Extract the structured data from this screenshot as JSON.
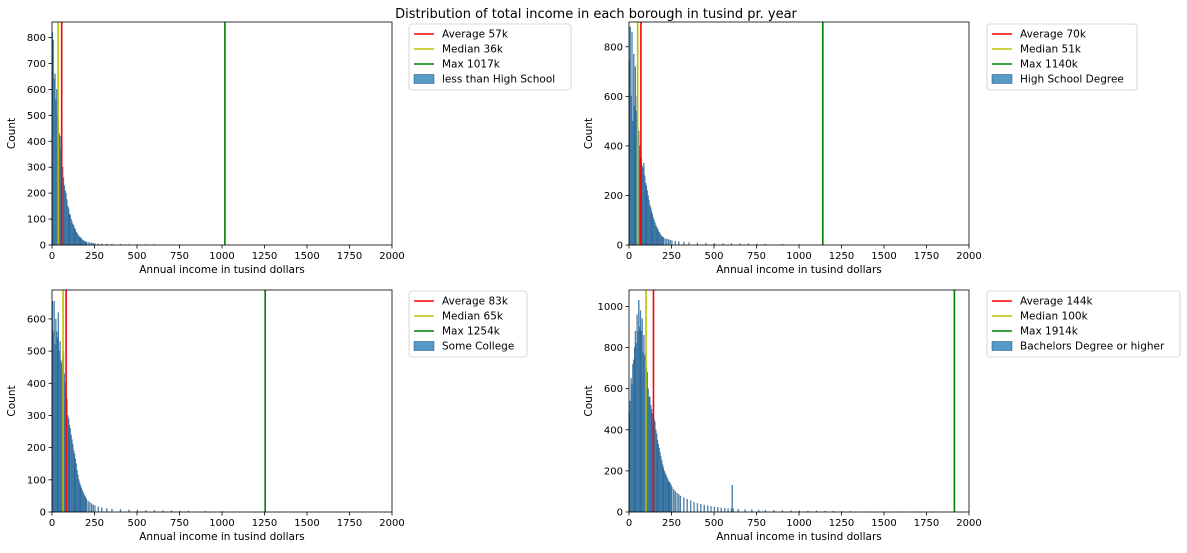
{
  "title": "Distribution of total income in each borough in tusind pr. year",
  "chart_data": [
    {
      "type": "bar",
      "xlabel": "Annual income in tusind dollars",
      "ylabel": "Count",
      "xlim": [
        0,
        2000
      ],
      "ylim": [
        0,
        860
      ],
      "xticks": [
        0,
        250,
        500,
        750,
        1000,
        1250,
        1500,
        1750,
        2000
      ],
      "yticks": [
        0,
        100,
        200,
        300,
        400,
        500,
        600,
        700,
        800
      ],
      "bin_width": 5,
      "legend": {
        "placement": "outside-top-right",
        "entries": [
          "Average 57k",
          "Median 36k",
          "Max 1017k",
          "less than High School"
        ]
      },
      "lines": {
        "average": 57,
        "median": 36,
        "max": 1017
      },
      "colors": {
        "average": "#ff0000",
        "median": "#bfbf00",
        "max": "#008000",
        "bars": "#1f77b4"
      },
      "bins": [
        [
          0,
          820
        ],
        [
          5,
          790
        ],
        [
          10,
          640
        ],
        [
          15,
          660
        ],
        [
          20,
          560
        ],
        [
          25,
          600
        ],
        [
          30,
          500
        ],
        [
          35,
          480
        ],
        [
          40,
          430
        ],
        [
          45,
          420
        ],
        [
          50,
          370
        ],
        [
          55,
          350
        ],
        [
          60,
          300
        ],
        [
          65,
          260
        ],
        [
          70,
          230
        ],
        [
          75,
          210
        ],
        [
          80,
          200
        ],
        [
          85,
          175
        ],
        [
          90,
          150
        ],
        [
          95,
          140
        ],
        [
          100,
          120
        ],
        [
          105,
          115
        ],
        [
          110,
          100
        ],
        [
          115,
          90
        ],
        [
          120,
          80
        ],
        [
          125,
          75
        ],
        [
          130,
          65
        ],
        [
          135,
          60
        ],
        [
          140,
          50
        ],
        [
          145,
          45
        ],
        [
          150,
          40
        ],
        [
          155,
          35
        ],
        [
          160,
          30
        ],
        [
          165,
          28
        ],
        [
          170,
          25
        ],
        [
          175,
          20
        ],
        [
          180,
          18
        ],
        [
          185,
          16
        ],
        [
          190,
          14
        ],
        [
          195,
          12
        ],
        [
          200,
          11
        ],
        [
          210,
          10
        ],
        [
          220,
          9
        ],
        [
          230,
          8
        ],
        [
          240,
          7
        ],
        [
          250,
          6
        ],
        [
          270,
          5
        ],
        [
          290,
          4
        ],
        [
          320,
          4
        ],
        [
          350,
          3
        ],
        [
          400,
          3
        ],
        [
          450,
          2
        ],
        [
          500,
          2
        ],
        [
          550,
          2
        ],
        [
          600,
          2
        ],
        [
          650,
          1
        ],
        [
          700,
          1
        ],
        [
          750,
          1
        ],
        [
          800,
          1
        ],
        [
          900,
          1
        ],
        [
          1017,
          1
        ]
      ]
    },
    {
      "type": "bar",
      "xlabel": "Annual income in tusind dollars",
      "ylabel": "Count",
      "xlim": [
        0,
        2000
      ],
      "ylim": [
        0,
        900
      ],
      "xticks": [
        0,
        250,
        500,
        750,
        1000,
        1250,
        1500,
        1750,
        2000
      ],
      "yticks": [
        0,
        200,
        400,
        600,
        800
      ],
      "bin_width": 5,
      "legend": {
        "placement": "outside-top-right",
        "entries": [
          "Average 70k",
          "Median 51k",
          "Max 1140k",
          "High School Degree"
        ]
      },
      "lines": {
        "average": 70,
        "median": 51,
        "max": 1140
      },
      "colors": {
        "average": "#ff0000",
        "median": "#bfbf00",
        "max": "#008000",
        "bars": "#1f77b4"
      },
      "bins": [
        [
          0,
          745
        ],
        [
          5,
          880
        ],
        [
          10,
          600
        ],
        [
          15,
          860
        ],
        [
          20,
          500
        ],
        [
          25,
          770
        ],
        [
          30,
          560
        ],
        [
          35,
          720
        ],
        [
          40,
          540
        ],
        [
          45,
          600
        ],
        [
          50,
          480
        ],
        [
          55,
          460
        ],
        [
          60,
          400
        ],
        [
          65,
          360
        ],
        [
          70,
          350
        ],
        [
          75,
          320
        ],
        [
          80,
          310
        ],
        [
          85,
          330
        ],
        [
          90,
          280
        ],
        [
          95,
          250
        ],
        [
          100,
          240
        ],
        [
          105,
          220
        ],
        [
          110,
          200
        ],
        [
          115,
          180
        ],
        [
          120,
          160
        ],
        [
          125,
          150
        ],
        [
          130,
          135
        ],
        [
          135,
          125
        ],
        [
          140,
          110
        ],
        [
          145,
          100
        ],
        [
          150,
          90
        ],
        [
          155,
          80
        ],
        [
          160,
          72
        ],
        [
          165,
          65
        ],
        [
          170,
          58
        ],
        [
          175,
          52
        ],
        [
          180,
          46
        ],
        [
          185,
          40
        ],
        [
          190,
          36
        ],
        [
          195,
          32
        ],
        [
          200,
          30
        ],
        [
          210,
          26
        ],
        [
          220,
          24
        ],
        [
          230,
          22
        ],
        [
          240,
          20
        ],
        [
          250,
          18
        ],
        [
          270,
          16
        ],
        [
          290,
          14
        ],
        [
          320,
          12
        ],
        [
          350,
          10
        ],
        [
          400,
          9
        ],
        [
          450,
          8
        ],
        [
          500,
          7
        ],
        [
          550,
          6
        ],
        [
          600,
          6
        ],
        [
          650,
          5
        ],
        [
          700,
          5
        ],
        [
          750,
          4
        ],
        [
          800,
          4
        ],
        [
          900,
          3
        ],
        [
          1000,
          2
        ],
        [
          1140,
          1
        ]
      ]
    },
    {
      "type": "bar",
      "xlabel": "Annual income in tusind dollars",
      "ylabel": "Count",
      "xlim": [
        0,
        2000
      ],
      "ylim": [
        0,
        690
      ],
      "xticks": [
        0,
        250,
        500,
        750,
        1000,
        1250,
        1500,
        1750,
        2000
      ],
      "yticks": [
        0,
        100,
        200,
        300,
        400,
        500,
        600
      ],
      "bin_width": 5,
      "legend": {
        "placement": "outside-top-right",
        "entries": [
          "Average 83k",
          "Median 65k",
          "Max 1254k",
          "Some College"
        ]
      },
      "lines": {
        "average": 83,
        "median": 65,
        "max": 1254
      },
      "colors": {
        "average": "#ff0000",
        "median": "#bfbf00",
        "max": "#008000",
        "bars": "#1f77b4"
      },
      "bins": [
        [
          0,
          655
        ],
        [
          5,
          560
        ],
        [
          10,
          655
        ],
        [
          15,
          520
        ],
        [
          20,
          600
        ],
        [
          25,
          560
        ],
        [
          30,
          540
        ],
        [
          35,
          620
        ],
        [
          40,
          500
        ],
        [
          45,
          530
        ],
        [
          50,
          470
        ],
        [
          55,
          460
        ],
        [
          60,
          480
        ],
        [
          65,
          500
        ],
        [
          70,
          430
        ],
        [
          75,
          400
        ],
        [
          80,
          370
        ],
        [
          85,
          350
        ],
        [
          90,
          300
        ],
        [
          95,
          290
        ],
        [
          100,
          270
        ],
        [
          105,
          260
        ],
        [
          110,
          240
        ],
        [
          115,
          225
        ],
        [
          120,
          210
        ],
        [
          125,
          190
        ],
        [
          130,
          180
        ],
        [
          135,
          165
        ],
        [
          140,
          150
        ],
        [
          145,
          130
        ],
        [
          150,
          115
        ],
        [
          155,
          100
        ],
        [
          160,
          90
        ],
        [
          165,
          82
        ],
        [
          170,
          75
        ],
        [
          175,
          68
        ],
        [
          180,
          62
        ],
        [
          185,
          56
        ],
        [
          190,
          50
        ],
        [
          195,
          45
        ],
        [
          200,
          40
        ],
        [
          210,
          34
        ],
        [
          220,
          30
        ],
        [
          230,
          26
        ],
        [
          240,
          22
        ],
        [
          250,
          20
        ],
        [
          270,
          16
        ],
        [
          290,
          13
        ],
        [
          320,
          11
        ],
        [
          350,
          9
        ],
        [
          400,
          8
        ],
        [
          450,
          7
        ],
        [
          500,
          6
        ],
        [
          550,
          5
        ],
        [
          600,
          5
        ],
        [
          650,
          4
        ],
        [
          700,
          4
        ],
        [
          750,
          3
        ],
        [
          800,
          3
        ],
        [
          900,
          2
        ],
        [
          1000,
          2
        ],
        [
          1100,
          1
        ],
        [
          1254,
          1
        ]
      ]
    },
    {
      "type": "bar",
      "xlabel": "Annual income in tusind dollars",
      "ylabel": "Count",
      "xlim": [
        0,
        2000
      ],
      "ylim": [
        0,
        1080
      ],
      "xticks": [
        0,
        250,
        500,
        750,
        1000,
        1250,
        1500,
        1750,
        2000
      ],
      "yticks": [
        0,
        200,
        400,
        600,
        800,
        1000
      ],
      "bin_width": 5,
      "legend": {
        "placement": "outside-top-right",
        "entries": [
          "Average 144k",
          "Median 100k",
          "Max 1914k",
          "Bachelors Degree or higher"
        ]
      },
      "lines": {
        "average": 144,
        "median": 100,
        "max": 1914
      },
      "colors": {
        "average": "#ff0000",
        "median": "#bfbf00",
        "max": "#008000",
        "bars": "#1f77b4"
      },
      "bins": [
        [
          0,
          480
        ],
        [
          5,
          540
        ],
        [
          10,
          650
        ],
        [
          15,
          620
        ],
        [
          20,
          720
        ],
        [
          25,
          740
        ],
        [
          30,
          800
        ],
        [
          35,
          880
        ],
        [
          40,
          820
        ],
        [
          45,
          960
        ],
        [
          50,
          880
        ],
        [
          55,
          1030
        ],
        [
          60,
          900
        ],
        [
          65,
          980
        ],
        [
          70,
          880
        ],
        [
          75,
          940
        ],
        [
          80,
          780
        ],
        [
          85,
          860
        ],
        [
          90,
          760
        ],
        [
          95,
          770
        ],
        [
          100,
          700
        ],
        [
          105,
          680
        ],
        [
          110,
          600
        ],
        [
          115,
          560
        ],
        [
          120,
          560
        ],
        [
          125,
          520
        ],
        [
          130,
          500
        ],
        [
          135,
          480
        ],
        [
          140,
          460
        ],
        [
          145,
          450
        ],
        [
          150,
          440
        ],
        [
          155,
          400
        ],
        [
          160,
          380
        ],
        [
          165,
          350
        ],
        [
          170,
          330
        ],
        [
          175,
          310
        ],
        [
          180,
          290
        ],
        [
          185,
          270
        ],
        [
          190,
          250
        ],
        [
          195,
          230
        ],
        [
          200,
          215
        ],
        [
          205,
          200
        ],
        [
          210,
          190
        ],
        [
          215,
          180
        ],
        [
          220,
          170
        ],
        [
          225,
          160
        ],
        [
          230,
          150
        ],
        [
          235,
          145
        ],
        [
          240,
          140
        ],
        [
          245,
          130
        ],
        [
          250,
          120
        ],
        [
          260,
          110
        ],
        [
          270,
          100
        ],
        [
          280,
          92
        ],
        [
          290,
          85
        ],
        [
          300,
          78
        ],
        [
          320,
          70
        ],
        [
          340,
          62
        ],
        [
          360,
          55
        ],
        [
          380,
          48
        ],
        [
          400,
          42
        ],
        [
          420,
          38
        ],
        [
          440,
          34
        ],
        [
          460,
          30
        ],
        [
          480,
          27
        ],
        [
          500,
          24
        ],
        [
          520,
          22
        ],
        [
          540,
          20
        ],
        [
          560,
          18
        ],
        [
          580,
          17
        ],
        [
          600,
          16
        ],
        [
          605,
          130
        ],
        [
          610,
          16
        ],
        [
          640,
          14
        ],
        [
          680,
          12
        ],
        [
          720,
          11
        ],
        [
          760,
          10
        ],
        [
          800,
          9
        ],
        [
          850,
          8
        ],
        [
          900,
          7
        ],
        [
          950,
          6
        ],
        [
          1000,
          6
        ],
        [
          1050,
          5
        ],
        [
          1100,
          5
        ],
        [
          1150,
          4
        ],
        [
          1200,
          4
        ],
        [
          1250,
          3
        ],
        [
          1300,
          3
        ],
        [
          1400,
          2
        ],
        [
          1500,
          2
        ],
        [
          1600,
          2
        ],
        [
          1700,
          1
        ],
        [
          1800,
          1
        ],
        [
          1914,
          1
        ]
      ]
    }
  ]
}
